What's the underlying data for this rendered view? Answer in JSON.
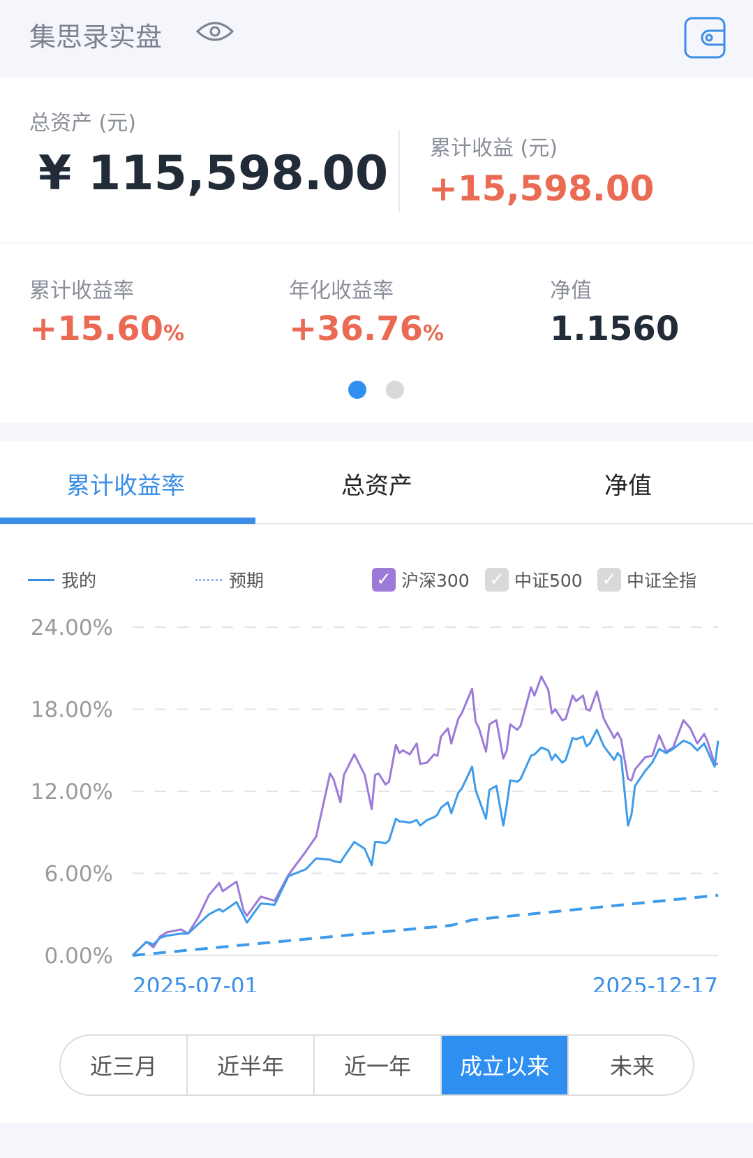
{
  "header": {
    "title": "集思录实盘",
    "eye_icon": "eye-icon",
    "wallet_icon": "wallet-icon"
  },
  "assets": {
    "total_label": "总资产 (元)",
    "total_value": "¥ 115,598.00",
    "profit_label": "累计收益 (元)",
    "profit_value": "+15,598.00"
  },
  "metrics": [
    {
      "label": "累计收益率",
      "value": "+15.60",
      "unit": "%"
    },
    {
      "label": "年化收益率",
      "value": "+36.76",
      "unit": "%"
    },
    {
      "label": "净值",
      "value": "1.1560"
    }
  ],
  "pager": {
    "pages": 2,
    "active": 1
  },
  "tabs": [
    {
      "label": "累计收益率",
      "active": true
    },
    {
      "label": "总资产"
    },
    {
      "label": "净值"
    }
  ],
  "legend": {
    "mine": "我的",
    "expected": "预期",
    "benchmarks": [
      {
        "label": "沪深300",
        "checked": true
      },
      {
        "label": "中证500",
        "checked": false
      },
      {
        "label": "中证全指",
        "checked": false
      }
    ]
  },
  "colors": {
    "accent": "#3a8ee6",
    "mine": "#3d9be9",
    "hs300": "#9b7ad8",
    "expected": "#3d9be9",
    "red": "#ea6a53",
    "active_btn": "#2f8ff0"
  },
  "chart_data": {
    "type": "line",
    "yticks": [
      "24.00%",
      "18.00%",
      "12.00%",
      "6.00%",
      "0.00%"
    ],
    "ylim": [
      0,
      24
    ],
    "xlim": [
      "2025-07-01",
      "2025-12-17"
    ],
    "xticks": [
      "2025-07-01",
      "2025-12-17"
    ],
    "grid": true,
    "legend_placement": "top",
    "x": [
      "2025-07-01",
      "2025-07-05",
      "2025-07-07",
      "2025-07-09",
      "2025-07-11",
      "2025-07-15",
      "2025-07-17",
      "2025-07-20",
      "2025-07-23",
      "2025-07-26",
      "2025-07-27",
      "2025-07-31",
      "2025-08-02",
      "2025-08-03",
      "2025-08-07",
      "2025-08-11",
      "2025-08-15",
      "2025-08-20",
      "2025-08-23",
      "2025-08-27",
      "2025-08-28",
      "2025-08-30",
      "2025-08-31",
      "2025-09-03",
      "2025-09-06",
      "2025-09-08",
      "2025-09-09",
      "2025-09-10",
      "2025-09-12",
      "2025-09-13",
      "2025-09-15",
      "2025-09-16",
      "2025-09-17",
      "2025-09-19",
      "2025-09-21",
      "2025-09-22",
      "2025-09-24",
      "2025-09-26",
      "2025-09-27",
      "2025-09-28",
      "2025-09-30",
      "2025-10-01",
      "2025-10-03",
      "2025-10-04",
      "2025-10-07",
      "2025-10-08",
      "2025-10-09",
      "2025-10-11",
      "2025-10-12",
      "2025-10-14",
      "2025-10-16",
      "2025-10-17",
      "2025-10-18",
      "2025-10-20",
      "2025-10-21",
      "2025-10-24",
      "2025-10-25",
      "2025-10-27",
      "2025-10-29",
      "2025-10-30",
      "2025-10-31",
      "2025-11-02",
      "2025-11-03",
      "2025-11-05",
      "2025-11-06",
      "2025-11-08",
      "2025-11-09",
      "2025-11-10",
      "2025-11-12",
      "2025-11-14",
      "2025-11-17",
      "2025-11-18",
      "2025-11-19",
      "2025-11-21",
      "2025-11-22",
      "2025-11-23",
      "2025-11-26",
      "2025-11-28",
      "2025-11-30",
      "2025-12-02",
      "2025-12-04",
      "2025-12-07",
      "2025-12-09",
      "2025-12-11",
      "2025-12-13",
      "2025-12-14",
      "2025-12-16",
      "2025-12-17"
    ],
    "series": [
      {
        "name": "我的",
        "style": "solid",
        "values": [
          0,
          1.0,
          0.8,
          1.3,
          1.45,
          1.6,
          1.6,
          2.3,
          3.0,
          3.4,
          3.2,
          3.9,
          2.9,
          2.4,
          3.8,
          3.7,
          5.8,
          6.3,
          7.1,
          7.0,
          6.9,
          6.8,
          7.2,
          8.3,
          7.8,
          6.6,
          8.3,
          8.3,
          8.2,
          8.4,
          10.0,
          9.8,
          9.8,
          9.7,
          9.9,
          9.5,
          9.9,
          10.1,
          10.3,
          10.8,
          11.2,
          10.4,
          11.9,
          12.2,
          13.8,
          12.1,
          11.4,
          10.0,
          12.1,
          12.4,
          9.5,
          11.0,
          12.8,
          12.7,
          12.9,
          14.6,
          14.7,
          15.2,
          15.0,
          14.3,
          14.7,
          14.1,
          14.3,
          15.9,
          15.8,
          16.0,
          15.3,
          15.5,
          16.5,
          15.3,
          14.3,
          14.8,
          14.5,
          9.5,
          10.3,
          12.4,
          13.5,
          14.1,
          15.1,
          14.8,
          15.1,
          15.7,
          15.5,
          15.0,
          15.5,
          14.9,
          13.8,
          15.7
        ]
      },
      {
        "name": "沪深300",
        "style": "solid",
        "values": [
          0,
          1.0,
          0.6,
          1.4,
          1.7,
          1.9,
          1.6,
          2.8,
          4.4,
          5.3,
          4.7,
          5.4,
          3.3,
          2.9,
          4.3,
          4.0,
          5.9,
          7.6,
          8.7,
          13.3,
          12.9,
          11.2,
          13.2,
          14.7,
          13.2,
          10.7,
          13.2,
          13.3,
          12.5,
          12.7,
          15.4,
          14.8,
          15.0,
          14.7,
          15.5,
          14.0,
          14.1,
          14.7,
          14.6,
          16.0,
          16.6,
          15.5,
          17.3,
          17.7,
          19.5,
          17.1,
          16.6,
          14.9,
          16.9,
          17.2,
          14.4,
          15.0,
          16.9,
          16.5,
          16.8,
          19.6,
          19.0,
          20.4,
          19.4,
          17.7,
          18.0,
          17.2,
          17.3,
          19.0,
          18.6,
          19.0,
          18.0,
          17.9,
          19.3,
          17.3,
          15.9,
          16.3,
          15.8,
          12.9,
          12.8,
          13.6,
          14.5,
          14.6,
          16.1,
          14.9,
          15.2,
          17.2,
          16.6,
          15.5,
          16.2,
          15.6,
          14.0,
          14.0
        ]
      },
      {
        "name": "预期",
        "style": "dashed",
        "x": [
          "2025-07-01",
          "2025-10-01",
          "2025-10-07",
          "2025-12-17"
        ],
        "values": [
          0,
          2.2,
          2.6,
          4.4
        ]
      }
    ]
  },
  "ranges": [
    {
      "label": "近三月"
    },
    {
      "label": "近半年"
    },
    {
      "label": "近一年"
    },
    {
      "label": "成立以来",
      "active": true
    },
    {
      "label": "未来"
    }
  ]
}
